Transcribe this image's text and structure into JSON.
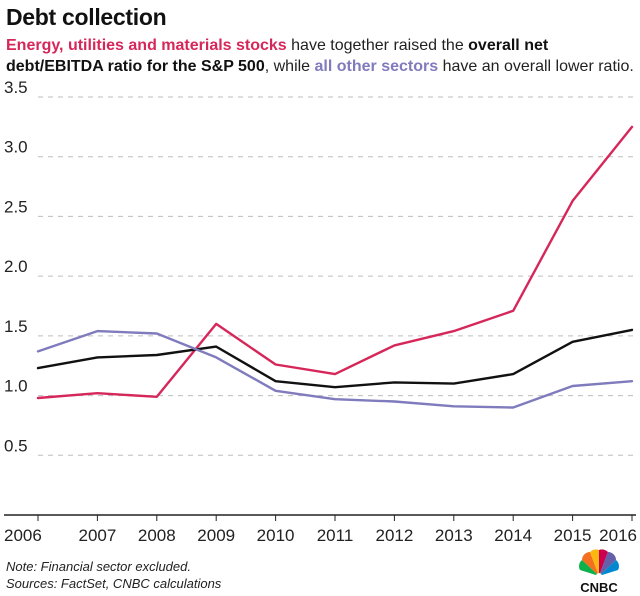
{
  "header": {
    "title": "Debt collection",
    "subtitle_part1": "Energy, utilities and materials stocks",
    "subtitle_part2": " have together raised the ",
    "subtitle_part3": "overall net debt/EBITDA ratio for the S&P 500",
    "subtitle_part4": ", while ",
    "subtitle_part5": "all other sectors",
    "subtitle_part6": " have an overall lower ratio."
  },
  "footer": {
    "note": "Note: Financial sector excluded.",
    "sources": "Sources: FactSet, CNBC calculations",
    "logo_text": "CNBC"
  },
  "colors": {
    "energy": "#d6275a",
    "overall": "#111111",
    "other": "#7f7bbd",
    "grid": "#bdbdbd"
  },
  "chart_data": {
    "type": "line",
    "title": "Debt collection",
    "x": [
      "2006",
      "2007",
      "2008",
      "2009",
      "2010",
      "2011",
      "2012",
      "2013",
      "2014",
      "2015",
      "2016"
    ],
    "yticks": [
      "0.5",
      "1.0",
      "1.5",
      "2.0",
      "2.5",
      "3.0",
      "3.5"
    ],
    "ylim": [
      0,
      3.5
    ],
    "grid": true,
    "series": [
      {
        "name": "Energy, utilities and materials stocks",
        "color": "#d6275a",
        "values": [
          0.98,
          1.02,
          0.99,
          1.6,
          1.26,
          1.18,
          1.42,
          1.54,
          1.71,
          2.63,
          3.25
        ]
      },
      {
        "name": "overall net debt/EBITDA ratio for the S&P 500",
        "color": "#111111",
        "values": [
          1.23,
          1.32,
          1.34,
          1.41,
          1.12,
          1.07,
          1.11,
          1.1,
          1.18,
          1.45,
          1.55
        ]
      },
      {
        "name": "all other sectors",
        "color": "#7f7bbd",
        "values": [
          1.37,
          1.54,
          1.52,
          1.32,
          1.04,
          0.97,
          0.95,
          0.91,
          0.9,
          1.08,
          1.12
        ]
      }
    ]
  }
}
